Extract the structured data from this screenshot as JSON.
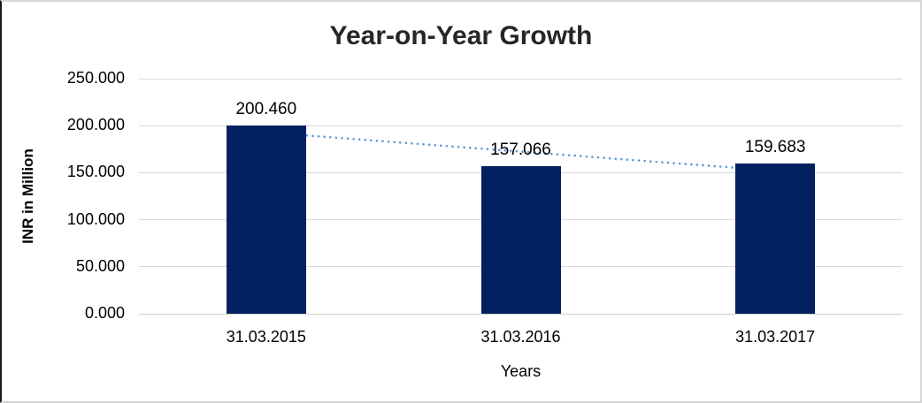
{
  "chart_data": {
    "type": "bar",
    "title": "Year-on-Year Growth",
    "categories": [
      "31.03.2015",
      "31.03.2016",
      "31.03.2017"
    ],
    "values": [
      200.46,
      157.066,
      159.683
    ],
    "data_labels": [
      "200.460",
      "157.066",
      "159.683"
    ],
    "xlabel": "Years",
    "ylabel": "INR in Million",
    "ylim": [
      0,
      250
    ],
    "ytick_step": 50,
    "ytick_labels": [
      "0.000",
      "50.000",
      "100.000",
      "150.000",
      "200.000",
      "250.000"
    ],
    "grid": true,
    "legend": "none",
    "trendline": {
      "style": "dotted",
      "fit": "linear"
    },
    "colors": {
      "bar": "#02215E",
      "trendline": "#5B9BD5",
      "gridline": "#D9D9D9",
      "title_text": "#262626",
      "label_text": "#000000",
      "frame_border": "#D6D6D6",
      "frame_border_left": "#1A1A1A"
    }
  }
}
